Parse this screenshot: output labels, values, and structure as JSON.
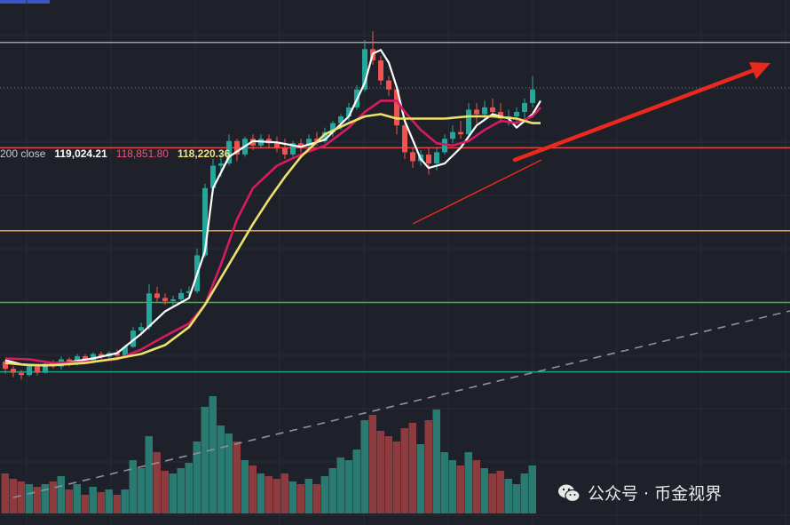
{
  "legend": {
    "prefix": "200 close",
    "v1": "119,024.21",
    "v2": "118,851.80",
    "v3": "118,220.36"
  },
  "watermark": {
    "text": "公众号 · 币金视界",
    "icon": "wechat-icon"
  },
  "colors": {
    "background": "#1e2129",
    "up": "#26a69a",
    "down": "#ef5350",
    "ma_fast": "#ffffff",
    "ma_mid": "#d81b60",
    "ma_slow": "#ede16b",
    "arrow": "#e8291c"
  },
  "chart_data": {
    "type": "candlestick",
    "title": "",
    "xlabel": "",
    "ylabel": "",
    "ylim": [
      110400,
      121200
    ],
    "volume_max": 100,
    "horizontal_levels": [
      {
        "value": 120650,
        "color": "#9aa0a8"
      },
      {
        "value": 119640,
        "color": "#6b7484",
        "style": "dotted"
      },
      {
        "value": 118300,
        "color": "#e04848"
      },
      {
        "value": 116450,
        "color": "#f2a22e"
      },
      {
        "value": 114850,
        "color": "#5aa05a"
      },
      {
        "value": 113300,
        "color": "#1ba38a"
      }
    ],
    "candles": [
      [
        113530,
        113580,
        113260,
        113370,
        30
      ],
      [
        113370,
        113430,
        113180,
        113280,
        26
      ],
      [
        113280,
        113340,
        113130,
        113230,
        24
      ],
      [
        113230,
        113480,
        113200,
        113420,
        22
      ],
      [
        113420,
        113460,
        113220,
        113280,
        20
      ],
      [
        113280,
        113520,
        113260,
        113480,
        22
      ],
      [
        113480,
        113560,
        113380,
        113420,
        24
      ],
      [
        113420,
        113640,
        113350,
        113580,
        28
      ],
      [
        113580,
        113620,
        113420,
        113480,
        18
      ],
      [
        113480,
        113700,
        113440,
        113650,
        22
      ],
      [
        113650,
        113700,
        113520,
        113560,
        14
      ],
      [
        113560,
        113740,
        113520,
        113700,
        20
      ],
      [
        113700,
        113760,
        113580,
        113640,
        16
      ],
      [
        113640,
        113760,
        113580,
        113720,
        18
      ],
      [
        113720,
        113800,
        113600,
        113660,
        14
      ],
      [
        113660,
        113900,
        113620,
        113860,
        18
      ],
      [
        113860,
        114300,
        113840,
        114220,
        40
      ],
      [
        114220,
        114400,
        114100,
        114300,
        34
      ],
      [
        114300,
        115250,
        114240,
        115050,
        58
      ],
      [
        115050,
        115200,
        114850,
        114950,
        46
      ],
      [
        114950,
        115050,
        114800,
        114880,
        32
      ],
      [
        114880,
        115000,
        114750,
        114920,
        30
      ],
      [
        114920,
        115150,
        114840,
        115060,
        34
      ],
      [
        115060,
        115200,
        114950,
        115100,
        38
      ],
      [
        115100,
        116050,
        115050,
        115900,
        54
      ],
      [
        115900,
        117500,
        115850,
        117400,
        80
      ],
      [
        117400,
        118050,
        117300,
        117900,
        88
      ],
      [
        117900,
        118200,
        117650,
        117950,
        66
      ],
      [
        117950,
        118600,
        117900,
        118450,
        60
      ],
      [
        118450,
        118500,
        118000,
        118150,
        54
      ],
      [
        118150,
        118550,
        118100,
        118500,
        40
      ],
      [
        118500,
        118600,
        118250,
        118350,
        36
      ],
      [
        118350,
        118600,
        118300,
        118500,
        30
      ],
      [
        118500,
        118600,
        118300,
        118400,
        28
      ],
      [
        118400,
        118550,
        118200,
        118300,
        26
      ],
      [
        118300,
        118500,
        118050,
        118150,
        30
      ],
      [
        118150,
        118450,
        118100,
        118400,
        24
      ],
      [
        118400,
        118500,
        118200,
        118350,
        22
      ],
      [
        118350,
        118600,
        118300,
        118500,
        26
      ],
      [
        118500,
        118650,
        118350,
        118450,
        22
      ],
      [
        118450,
        118750,
        118400,
        118650,
        28
      ],
      [
        118650,
        118900,
        118550,
        118850,
        34
      ],
      [
        118850,
        119050,
        118700,
        119000,
        42
      ],
      [
        119000,
        119300,
        118900,
        119200,
        40
      ],
      [
        119200,
        119700,
        119150,
        119600,
        48
      ],
      [
        119600,
        120700,
        119550,
        120500,
        70
      ],
      [
        120500,
        120900,
        120150,
        120250,
        74
      ],
      [
        120250,
        120350,
        119700,
        119800,
        62
      ],
      [
        119800,
        119900,
        119450,
        119600,
        58
      ],
      [
        119600,
        119650,
        118600,
        118800,
        54
      ],
      [
        118800,
        119000,
        118050,
        118200,
        64
      ],
      [
        118200,
        118300,
        117850,
        118000,
        68
      ],
      [
        118000,
        118250,
        117900,
        118150,
        52
      ],
      [
        118150,
        118300,
        117700,
        117950,
        70
      ],
      [
        117950,
        118300,
        117800,
        118200,
        78
      ],
      [
        118200,
        118600,
        118150,
        118500,
        46
      ],
      [
        118500,
        118800,
        118400,
        118650,
        40
      ],
      [
        118650,
        118900,
        118500,
        118600,
        36
      ],
      [
        118600,
        119300,
        118550,
        119150,
        46
      ],
      [
        119150,
        119300,
        118850,
        119050,
        40
      ],
      [
        119050,
        119350,
        118900,
        119200,
        34
      ],
      [
        119200,
        119400,
        119000,
        119100,
        30
      ],
      [
        119100,
        119300,
        118850,
        118950,
        32
      ],
      [
        118950,
        119150,
        118800,
        119000,
        26
      ],
      [
        119000,
        119200,
        118850,
        119100,
        22
      ],
      [
        119100,
        119400,
        118950,
        119300,
        30
      ],
      [
        119300,
        119900,
        119200,
        119600,
        36
      ]
    ],
    "series": [
      {
        "name": "",
        "color": "#ffffff",
        "values": [
          [
            0,
            113560
          ],
          [
            2,
            113470
          ],
          [
            5,
            113440
          ],
          [
            8,
            113520
          ],
          [
            11,
            113600
          ],
          [
            14,
            113720
          ],
          [
            17,
            114150
          ],
          [
            20,
            114650
          ],
          [
            23,
            114950
          ],
          [
            25,
            116000
          ],
          [
            26,
            117400
          ],
          [
            28,
            118100
          ],
          [
            31,
            118450
          ],
          [
            34,
            118420
          ],
          [
            37,
            118320
          ],
          [
            40,
            118480
          ],
          [
            43,
            119000
          ],
          [
            45,
            119750
          ],
          [
            46,
            120400
          ],
          [
            47,
            120480
          ],
          [
            48,
            120200
          ],
          [
            49,
            119650
          ],
          [
            50,
            118900
          ],
          [
            52,
            118050
          ],
          [
            53,
            117850
          ],
          [
            55,
            117950
          ],
          [
            57,
            118300
          ],
          [
            59,
            118800
          ],
          [
            61,
            119050
          ],
          [
            63,
            118950
          ],
          [
            64,
            118750
          ],
          [
            66,
            119050
          ],
          [
            67,
            119350
          ]
        ]
      },
      {
        "name": "",
        "color": "#d81b60",
        "values": [
          [
            0,
            113600
          ],
          [
            3,
            113580
          ],
          [
            6,
            113500
          ],
          [
            10,
            113520
          ],
          [
            14,
            113580
          ],
          [
            17,
            113800
          ],
          [
            20,
            114100
          ],
          [
            23,
            114380
          ],
          [
            25,
            114800
          ],
          [
            27,
            115700
          ],
          [
            29,
            116700
          ],
          [
            31,
            117400
          ],
          [
            34,
            117900
          ],
          [
            37,
            118150
          ],
          [
            40,
            118350
          ],
          [
            43,
            118750
          ],
          [
            45,
            119100
          ],
          [
            47,
            119350
          ],
          [
            49,
            119350
          ],
          [
            50,
            119100
          ],
          [
            52,
            118700
          ],
          [
            54,
            118400
          ],
          [
            56,
            118350
          ],
          [
            58,
            118450
          ],
          [
            60,
            118700
          ],
          [
            62,
            118900
          ],
          [
            64,
            118850
          ],
          [
            66,
            119000
          ],
          [
            67,
            119200
          ]
        ]
      },
      {
        "name": "",
        "color": "#ede16b",
        "values": [
          [
            0,
            113500
          ],
          [
            3,
            113450
          ],
          [
            6,
            113450
          ],
          [
            10,
            113500
          ],
          [
            14,
            113600
          ],
          [
            17,
            113700
          ],
          [
            20,
            113900
          ],
          [
            23,
            114300
          ],
          [
            25,
            114800
          ],
          [
            27,
            115400
          ],
          [
            29,
            116000
          ],
          [
            31,
            116600
          ],
          [
            33,
            117150
          ],
          [
            35,
            117650
          ],
          [
            37,
            118100
          ],
          [
            40,
            118600
          ],
          [
            43,
            118850
          ],
          [
            45,
            119000
          ],
          [
            47,
            119050
          ],
          [
            49,
            118950
          ],
          [
            52,
            118950
          ],
          [
            55,
            118950
          ],
          [
            58,
            119000
          ],
          [
            61,
            119000
          ],
          [
            64,
            118950
          ],
          [
            66,
            118850
          ],
          [
            67,
            118850
          ]
        ]
      }
    ]
  }
}
